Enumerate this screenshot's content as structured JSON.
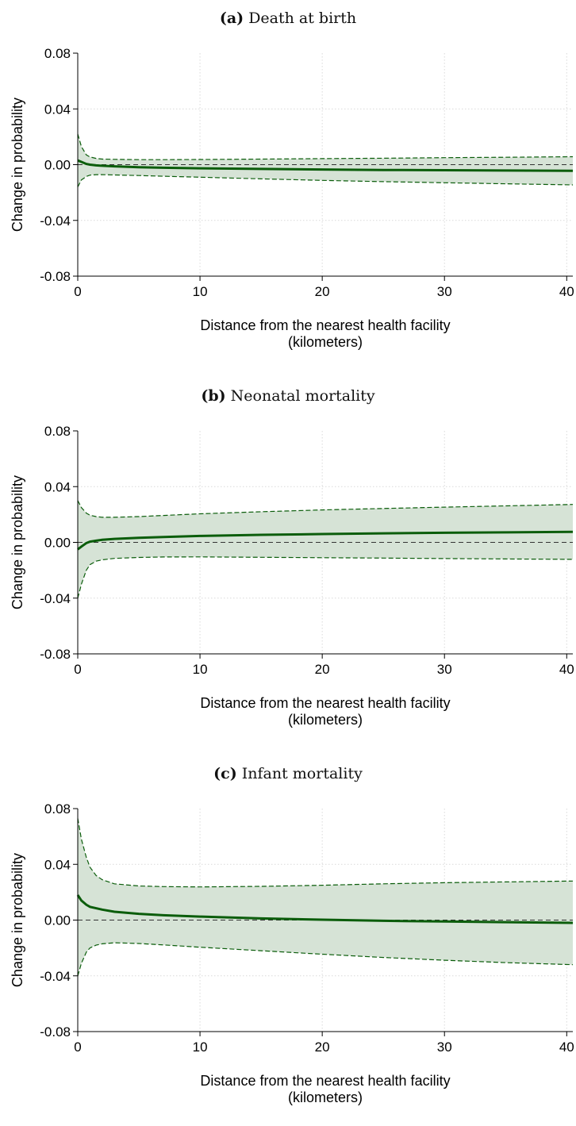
{
  "chart_data": [
    {
      "type": "line",
      "title_letter": "(a)",
      "title_text": "Death at birth",
      "xlabel": "Distance from the nearest health facility",
      "xlabel2": "(kilometers)",
      "ylabel": "Change in probability",
      "xlim": [
        0,
        40.5
      ],
      "ylim": [
        -0.08,
        0.08
      ],
      "xticks": [
        0,
        10,
        20,
        30,
        40
      ],
      "yticks": [
        -0.08,
        -0.04,
        0.0,
        0.04,
        0.08
      ],
      "ytick_labels": [
        "-0.08",
        "-0.04",
        "0.00",
        "0.04",
        "0.08"
      ],
      "grid": true,
      "reference_line": 0,
      "colors": {
        "line": "#0b5d0b",
        "band": "#d6e3d6"
      },
      "series": [
        {
          "role": "estimate",
          "x": [
            0,
            0.3,
            0.7,
            1,
            1.5,
            2,
            3,
            5,
            7,
            10,
            15,
            20,
            25,
            30,
            35,
            40.5
          ],
          "y": [
            0.003,
            0.002,
            0.0005,
            0.0,
            -0.0005,
            -0.0008,
            -0.0012,
            -0.0018,
            -0.0022,
            -0.0026,
            -0.0031,
            -0.0035,
            -0.0038,
            -0.004,
            -0.0042,
            -0.0044
          ]
        },
        {
          "role": "upper_ci",
          "x": [
            0,
            0.3,
            0.7,
            1,
            1.5,
            2,
            3,
            5,
            7,
            10,
            15,
            20,
            25,
            30,
            35,
            40.5
          ],
          "y": [
            0.022,
            0.013,
            0.007,
            0.0055,
            0.0045,
            0.004,
            0.0038,
            0.0036,
            0.0036,
            0.0037,
            0.004,
            0.0043,
            0.0046,
            0.005,
            0.0053,
            0.0057
          ]
        },
        {
          "role": "lower_ci",
          "x": [
            0,
            0.3,
            0.7,
            1,
            1.5,
            2,
            3,
            5,
            7,
            10,
            15,
            20,
            25,
            30,
            35,
            40.5
          ],
          "y": [
            -0.016,
            -0.011,
            -0.0085,
            -0.0075,
            -0.0072,
            -0.0072,
            -0.0074,
            -0.0078,
            -0.0083,
            -0.009,
            -0.0102,
            -0.0113,
            -0.0122,
            -0.013,
            -0.0137,
            -0.0145
          ]
        }
      ]
    },
    {
      "type": "line",
      "title_letter": "(b)",
      "title_text": "Neonatal mortality",
      "xlabel": "Distance from the nearest health facility",
      "xlabel2": "(kilometers)",
      "ylabel": "Change in probability",
      "xlim": [
        0,
        40.5
      ],
      "ylim": [
        -0.08,
        0.08
      ],
      "xticks": [
        0,
        10,
        20,
        30,
        40
      ],
      "yticks": [
        -0.08,
        -0.04,
        0.0,
        0.04,
        0.08
      ],
      "ytick_labels": [
        "-0.08",
        "-0.04",
        "0.00",
        "0.04",
        "0.08"
      ],
      "grid": true,
      "reference_line": 0,
      "colors": {
        "line": "#0b5d0b",
        "band": "#d6e3d6"
      },
      "series": [
        {
          "role": "estimate",
          "x": [
            0,
            0.3,
            0.7,
            1,
            1.5,
            2,
            3,
            5,
            7,
            10,
            15,
            20,
            25,
            30,
            35,
            40.5
          ],
          "y": [
            -0.005,
            -0.003,
            -0.0005,
            0.0005,
            0.0012,
            0.0018,
            0.0025,
            0.0033,
            0.0039,
            0.0046,
            0.0054,
            0.006,
            0.0065,
            0.0069,
            0.0072,
            0.0075
          ]
        },
        {
          "role": "upper_ci",
          "x": [
            0,
            0.3,
            0.7,
            1,
            1.5,
            2,
            3,
            5,
            7,
            10,
            15,
            20,
            25,
            30,
            35,
            40.5
          ],
          "y": [
            0.03,
            0.025,
            0.021,
            0.0195,
            0.0185,
            0.018,
            0.018,
            0.0185,
            0.0193,
            0.0205,
            0.022,
            0.0233,
            0.0243,
            0.0253,
            0.0262,
            0.0272
          ]
        },
        {
          "role": "lower_ci",
          "x": [
            0,
            0.3,
            0.7,
            1,
            1.5,
            2,
            3,
            5,
            7,
            10,
            15,
            20,
            25,
            30,
            35,
            40.5
          ],
          "y": [
            -0.04,
            -0.03,
            -0.02,
            -0.016,
            -0.0135,
            -0.0125,
            -0.0115,
            -0.0108,
            -0.0105,
            -0.0104,
            -0.0107,
            -0.011,
            -0.0113,
            -0.0116,
            -0.0119,
            -0.0122
          ]
        }
      ]
    },
    {
      "type": "line",
      "title_letter": "(c)",
      "title_text": "Infant mortality",
      "xlabel": "Distance from the nearest health facility",
      "xlabel2": "(kilometers)",
      "ylabel": "Change in probability",
      "xlim": [
        0,
        40.5
      ],
      "ylim": [
        -0.08,
        0.08
      ],
      "xticks": [
        0,
        10,
        20,
        30,
        40
      ],
      "yticks": [
        -0.08,
        -0.04,
        0.0,
        0.04,
        0.08
      ],
      "ytick_labels": [
        "-0.08",
        "-0.04",
        "0.00",
        "0.04",
        "0.08"
      ],
      "grid": true,
      "reference_line": 0,
      "colors": {
        "line": "#0b5d0b",
        "band": "#d6e3d6"
      },
      "series": [
        {
          "role": "estimate",
          "x": [
            0,
            0.3,
            0.7,
            1,
            1.5,
            2,
            3,
            5,
            7,
            10,
            15,
            20,
            25,
            30,
            35,
            40.5
          ],
          "y": [
            0.018,
            0.014,
            0.011,
            0.0095,
            0.0085,
            0.0075,
            0.006,
            0.0045,
            0.0035,
            0.0025,
            0.0012,
            0.0003,
            -0.0005,
            -0.001,
            -0.0015,
            -0.002
          ]
        },
        {
          "role": "upper_ci",
          "x": [
            0,
            0.3,
            0.7,
            1,
            1.5,
            2,
            3,
            5,
            7,
            10,
            15,
            20,
            25,
            30,
            35,
            40.5
          ],
          "y": [
            0.073,
            0.058,
            0.045,
            0.038,
            0.032,
            0.029,
            0.026,
            0.0245,
            0.024,
            0.0238,
            0.0242,
            0.025,
            0.026,
            0.0268,
            0.0274,
            0.028
          ]
        },
        {
          "role": "lower_ci",
          "x": [
            0,
            0.3,
            0.7,
            1,
            1.5,
            2,
            3,
            5,
            7,
            10,
            15,
            20,
            25,
            30,
            35,
            40.5
          ],
          "y": [
            -0.04,
            -0.031,
            -0.023,
            -0.02,
            -0.018,
            -0.017,
            -0.0163,
            -0.0168,
            -0.0178,
            -0.0195,
            -0.022,
            -0.0245,
            -0.0268,
            -0.0288,
            -0.0305,
            -0.032
          ]
        }
      ]
    }
  ]
}
